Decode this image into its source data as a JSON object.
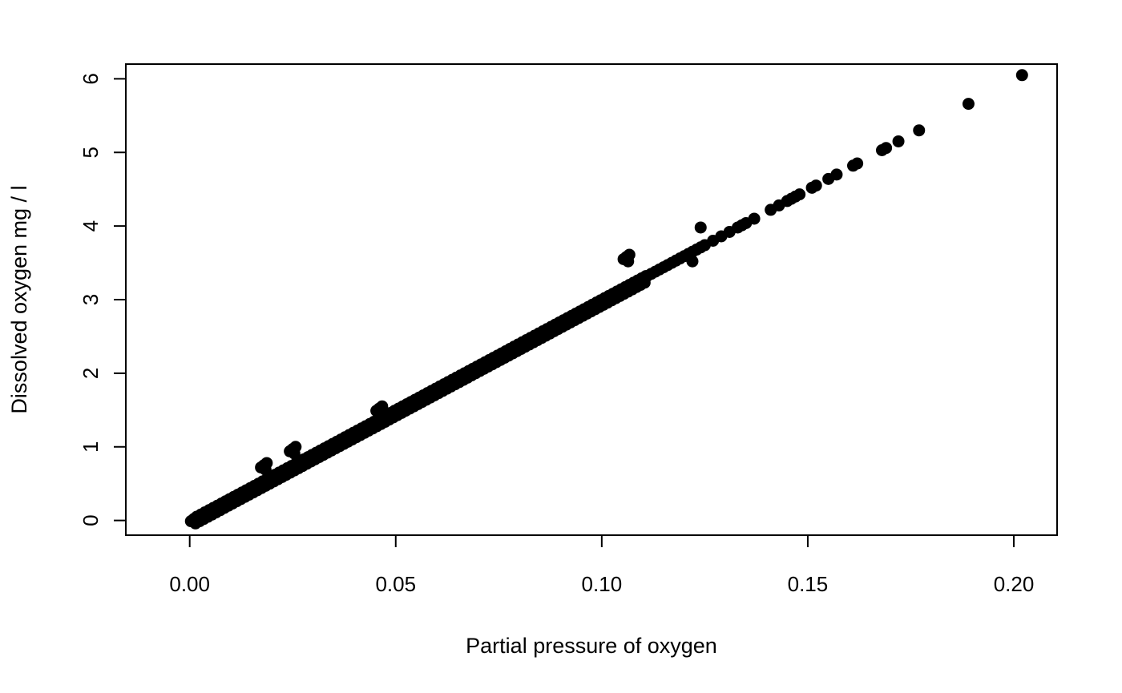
{
  "chart_data": {
    "type": "scatter",
    "xlabel": "Partial pressure of oxygen",
    "ylabel": "Dissolved oxygen mg / l",
    "xlim": [
      -0.0155,
      0.2105
    ],
    "ylim": [
      -0.2,
      6.2
    ],
    "xticks": [
      0.0,
      0.05,
      0.1,
      0.15,
      0.2
    ],
    "xtick_labels": [
      "0.00",
      "0.05",
      "0.10",
      "0.15",
      "0.20"
    ],
    "yticks": [
      0,
      1,
      2,
      3,
      4,
      5,
      6
    ],
    "ytick_labels": [
      "0",
      "1",
      "2",
      "3",
      "4",
      "5",
      "6"
    ],
    "grid": false,
    "legend": "none",
    "point_color": "#000000",
    "series": [
      {
        "x": [
          0.001,
          0.002,
          0.003,
          0.004,
          0.005,
          0.006,
          0.007,
          0.008,
          0.009,
          0.01,
          0.011,
          0.012,
          0.013,
          0.014,
          0.015,
          0.016,
          0.017,
          0.018,
          0.019,
          0.02,
          0.021,
          0.022,
          0.023,
          0.024,
          0.025,
          0.026,
          0.027,
          0.028,
          0.029,
          0.03,
          0.031,
          0.032,
          0.033,
          0.034,
          0.035,
          0.036,
          0.037,
          0.038,
          0.039,
          0.04,
          0.041,
          0.042,
          0.043,
          0.044,
          0.045,
          0.046,
          0.047,
          0.048,
          0.049,
          0.05,
          0.051,
          0.052,
          0.053,
          0.054,
          0.055,
          0.056,
          0.057,
          0.058,
          0.059,
          0.06,
          0.061,
          0.062,
          0.063,
          0.064,
          0.065,
          0.066,
          0.067,
          0.068,
          0.069,
          0.07,
          0.071,
          0.072,
          0.073,
          0.074,
          0.075,
          0.076,
          0.077,
          0.078,
          0.079,
          0.08,
          0.081,
          0.082,
          0.083,
          0.084,
          0.085,
          0.086,
          0.087,
          0.088,
          0.089,
          0.09,
          0.091,
          0.092,
          0.093,
          0.094,
          0.095,
          0.096,
          0.097,
          0.098,
          0.099,
          0.1,
          0.101,
          0.102,
          0.103,
          0.104,
          0.105,
          0.106,
          0.107,
          0.108,
          0.109,
          0.11,
          0.111,
          0.112,
          0.113,
          0.114,
          0.115,
          0.116,
          0.117,
          0.118,
          0.119,
          0.12,
          0.121,
          0.122,
          0.123,
          0.124,
          0.125,
          0.127,
          0.129,
          0.131,
          0.133,
          0.134,
          0.135,
          0.137,
          0.141,
          0.143,
          0.145,
          0.146,
          0.147,
          0.148,
          0.151,
          0.152,
          0.155,
          0.157,
          0.161,
          0.162,
          0.168,
          0.169,
          0.172,
          0.177,
          0.189,
          0.202,
          0.025,
          0.106,
          0.124,
          0.122,
          0.018,
          0.046
        ],
        "y": [
          0.02,
          0.05,
          0.08,
          0.11,
          0.14,
          0.17,
          0.2,
          0.23,
          0.26,
          0.29,
          0.32,
          0.35,
          0.38,
          0.41,
          0.44,
          0.47,
          0.5,
          0.53,
          0.56,
          0.59,
          0.62,
          0.65,
          0.68,
          0.71,
          0.74,
          0.77,
          0.8,
          0.83,
          0.86,
          0.89,
          0.92,
          0.95,
          0.98,
          1.01,
          1.04,
          1.07,
          1.1,
          1.13,
          1.16,
          1.19,
          1.22,
          1.25,
          1.28,
          1.31,
          1.34,
          1.37,
          1.4,
          1.43,
          1.46,
          1.49,
          1.52,
          1.55,
          1.58,
          1.61,
          1.64,
          1.67,
          1.7,
          1.73,
          1.76,
          1.79,
          1.82,
          1.85,
          1.88,
          1.91,
          1.94,
          1.97,
          2.0,
          2.03,
          2.06,
          2.09,
          2.12,
          2.15,
          2.18,
          2.21,
          2.24,
          2.27,
          2.3,
          2.33,
          2.36,
          2.39,
          2.42,
          2.45,
          2.48,
          2.51,
          2.54,
          2.57,
          2.6,
          2.63,
          2.66,
          2.69,
          2.72,
          2.75,
          2.78,
          2.81,
          2.84,
          2.87,
          2.9,
          2.93,
          2.96,
          2.99,
          3.02,
          3.05,
          3.08,
          3.11,
          3.14,
          3.17,
          3.2,
          3.23,
          3.26,
          3.29,
          3.32,
          3.35,
          3.38,
          3.41,
          3.44,
          3.47,
          3.5,
          3.53,
          3.56,
          3.59,
          3.62,
          3.65,
          3.68,
          3.71,
          3.74,
          3.8,
          3.86,
          3.92,
          3.98,
          4.01,
          4.04,
          4.1,
          4.22,
          4.28,
          4.34,
          4.37,
          4.4,
          4.43,
          4.52,
          4.55,
          4.64,
          4.7,
          4.82,
          4.85,
          5.03,
          5.06,
          5.15,
          5.3,
          5.66,
          6.05,
          0.97,
          3.58,
          3.98,
          3.52,
          0.75,
          1.52
        ]
      }
    ]
  }
}
